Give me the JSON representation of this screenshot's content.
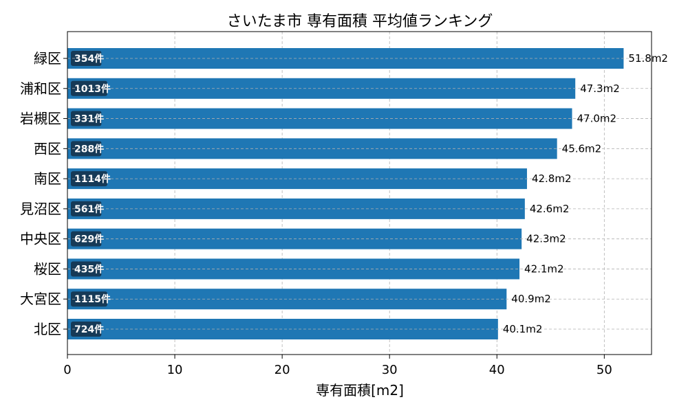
{
  "chart_data": {
    "type": "bar",
    "orientation": "horizontal",
    "title": "さいたま市 専有面積 平均値ランキング",
    "xlabel": "専有面積[m2]",
    "ylabel": "",
    "xlim": [
      0,
      54.4
    ],
    "xticks": [
      0,
      10,
      20,
      30,
      40,
      50
    ],
    "grid": true,
    "colors": {
      "bar": "#1f77b4",
      "count_badge_bg": "#163a57",
      "count_badge_text": "#ffffff",
      "grid": "#b0b0b0",
      "axis": "#000000"
    },
    "value_unit": "m2",
    "count_unit": "件",
    "categories": [
      "緑区",
      "浦和区",
      "岩槻区",
      "西区",
      "南区",
      "見沼区",
      "中央区",
      "桜区",
      "大宮区",
      "北区"
    ],
    "values": [
      51.8,
      47.3,
      47.0,
      45.6,
      42.8,
      42.6,
      42.3,
      42.1,
      40.9,
      40.1
    ],
    "value_labels": [
      "51.8m2",
      "47.3m2",
      "47.0m2",
      "45.6m2",
      "42.8m2",
      "42.6m2",
      "42.3m2",
      "42.1m2",
      "40.9m2",
      "40.1m2"
    ],
    "counts": [
      354,
      1013,
      331,
      288,
      1114,
      561,
      629,
      435,
      1115,
      724
    ],
    "count_labels": [
      "354件",
      "1013件",
      "331件",
      "288件",
      "1114件",
      "561件",
      "629件",
      "435件",
      "1115件",
      "724件"
    ]
  }
}
